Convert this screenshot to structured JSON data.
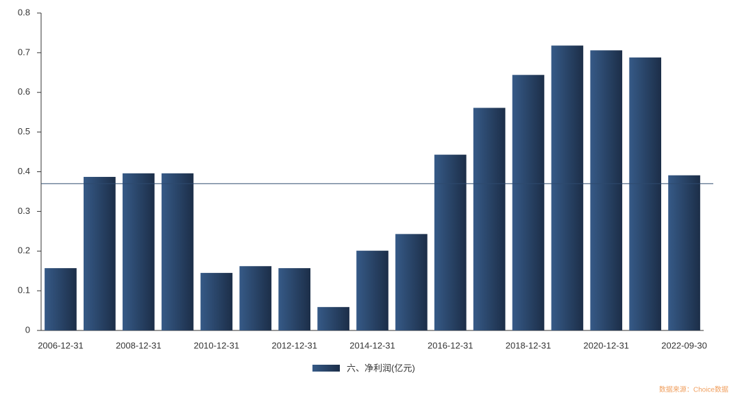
{
  "chart_data": {
    "type": "bar",
    "categories": [
      "2006-12-31",
      null,
      "2008-12-31",
      null,
      "2010-12-31",
      null,
      "2012-12-31",
      null,
      "2014-12-31",
      null,
      "2016-12-31",
      null,
      "2018-12-31",
      null,
      "2020-12-31",
      null,
      "2022-09-30"
    ],
    "series": [
      {
        "name": "六、净利润(亿元)",
        "color": "#365a87",
        "values": [
          0.157,
          0.387,
          0.396,
          0.396,
          0.145,
          0.162,
          0.157,
          0.059,
          0.201,
          0.243,
          0.443,
          0.561,
          0.644,
          0.718,
          0.706,
          0.688,
          0.391
        ]
      }
    ],
    "ylim": [
      0,
      0.8
    ],
    "yticks": [
      0,
      0.1,
      0.2,
      0.3,
      0.4,
      0.5,
      0.6,
      0.7,
      0.8
    ],
    "reference_line": 0.37,
    "source": "数据来源：Choice数据"
  }
}
